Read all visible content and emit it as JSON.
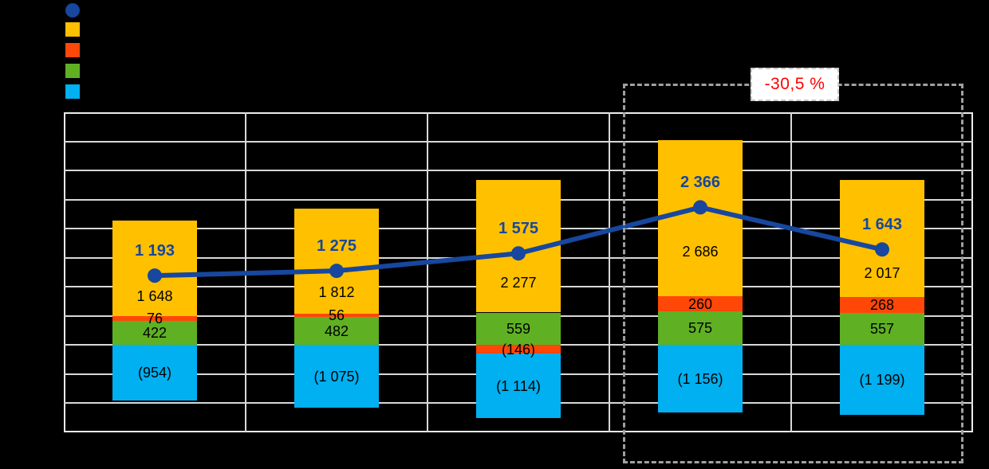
{
  "chart_data": {
    "type": "bar",
    "subtype": "stacked-bars-with-line-overlay",
    "title": "",
    "categories": [
      "",
      "",
      "",
      "",
      ""
    ],
    "x_axis_labels_visible": false,
    "y_axis_labels_visible": false,
    "ylim": [
      -1500,
      4000
    ],
    "grid_step": 500,
    "grid": true,
    "number_format": "space thousands separator, negatives in parentheses",
    "series": [
      {
        "name": "net-line",
        "type": "line",
        "color": "#17479E",
        "values": [
          1193,
          1275,
          1575,
          2366,
          1643
        ],
        "labels": [
          "1 193",
          "1 275",
          "1 575",
          "2 366",
          "1 643"
        ]
      },
      {
        "name": "orange-segment",
        "type": "bar",
        "color": "#FFC000",
        "values": [
          1648,
          1812,
          2277,
          2686,
          2017
        ],
        "labels": [
          "1 648",
          "1 812",
          "2 277",
          "2 686",
          "2 017"
        ]
      },
      {
        "name": "red-segment",
        "type": "bar",
        "color": "#FF4708",
        "values": [
          76,
          56,
          -146,
          260,
          268
        ],
        "labels": [
          "76",
          "56",
          "(146)",
          "260",
          "268"
        ]
      },
      {
        "name": "green-segment",
        "type": "bar",
        "color": "#5FB023",
        "values": [
          422,
          482,
          559,
          575,
          557
        ],
        "labels": [
          "422",
          "482",
          "559",
          "575",
          "557"
        ]
      },
      {
        "name": "cyan-segment",
        "type": "bar",
        "color": "#00B0F0",
        "values": [
          -954,
          -1075,
          -1114,
          -1156,
          -1199
        ],
        "labels": [
          "(954)",
          "(1 075)",
          "(1 114)",
          "(1 156)",
          "(1 199)"
        ]
      }
    ],
    "legend": {
      "position": "top-left",
      "labels_visible": false,
      "markers": [
        {
          "name": "line-legend-marker",
          "shape": "circle",
          "color": "#17479E"
        },
        {
          "name": "orange-legend-marker",
          "shape": "square",
          "color": "#FFC000"
        },
        {
          "name": "red-legend-marker",
          "shape": "square",
          "color": "#FF4708"
        },
        {
          "name": "green-legend-marker",
          "shape": "square",
          "color": "#5FB023"
        },
        {
          "name": "cyan-legend-marker",
          "shape": "square",
          "color": "#00B0F0"
        }
      ]
    },
    "annotation": {
      "label": "-30,5 %",
      "text_color": "#FF0000",
      "box_fill": "#FFFFFF",
      "border_style": "dashed",
      "spans_categories": [
        3,
        4
      ]
    },
    "colors": {
      "background": "#000000",
      "grid": "#D8D8D8",
      "plot_border": "#ECECEC",
      "bar_label_text": "#000000",
      "line_label_text": "#17479E"
    }
  }
}
